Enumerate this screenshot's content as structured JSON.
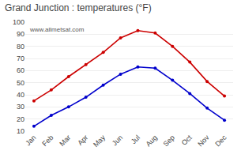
{
  "chart_data": {
    "type": "line",
    "title": "Grand Junction : temperatures (°F)",
    "categories": [
      "Jan",
      "Feb",
      "Mar",
      "Apr",
      "May",
      "Jun",
      "Jul",
      "Aug",
      "Sep",
      "Oct",
      "Nov",
      "Dec"
    ],
    "series": [
      {
        "color": "#cc0000",
        "values": [
          35,
          44,
          55,
          65,
          75,
          87,
          93,
          91,
          80,
          67,
          51,
          39
        ]
      },
      {
        "color": "#0000cc",
        "values": [
          14,
          23,
          30,
          38,
          48,
          57,
          63,
          62,
          52,
          41,
          29,
          19
        ]
      }
    ],
    "ylim": [
      10,
      100
    ],
    "yticks": [
      10,
      20,
      30,
      40,
      50,
      60,
      70,
      80,
      90,
      100
    ],
    "grid": true,
    "marker": "circle",
    "annotations": [
      "www.allmetsat.com"
    ]
  }
}
